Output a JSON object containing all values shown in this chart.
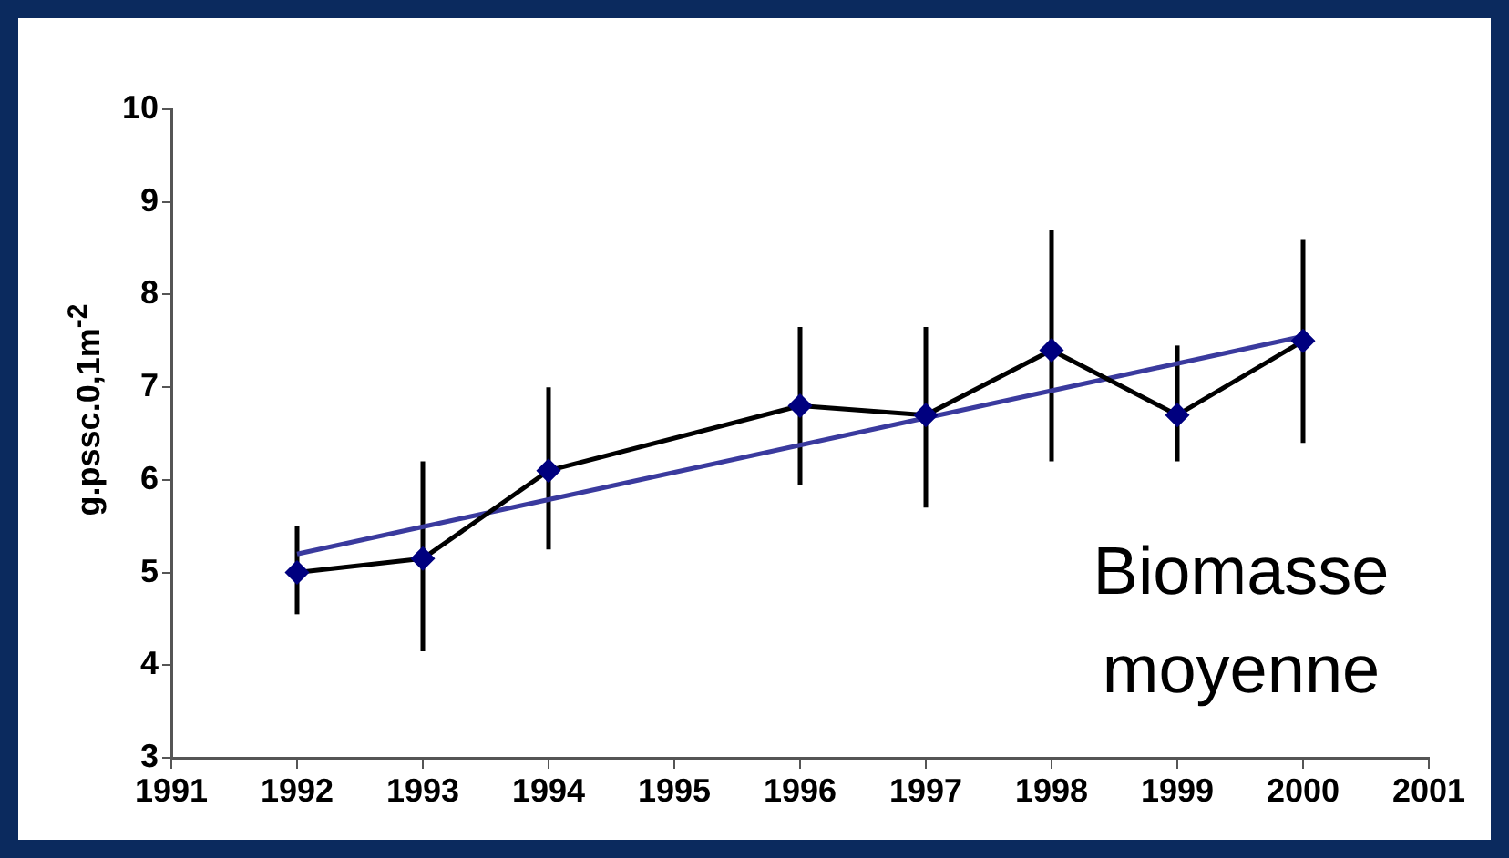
{
  "chart_data": {
    "type": "line",
    "ylabel": "g.pssc.0,1m$^{-2}$",
    "annotations": [
      "Biomasse moyenne"
    ],
    "xlim": [
      1991,
      2001
    ],
    "xticks": [
      1991,
      1992,
      1993,
      1994,
      1995,
      1996,
      1997,
      1998,
      1999,
      2000,
      2001
    ],
    "ylim": [
      3,
      10
    ],
    "yticks": [
      3,
      4,
      5,
      6,
      7,
      8,
      9,
      10
    ],
    "grid": false,
    "marker": "diamond",
    "series": [
      {
        "color": "#000000",
        "x": [
          1992,
          1993,
          1994,
          1996,
          1997,
          1998,
          1999,
          2000
        ],
        "values": [
          5.0,
          5.15,
          6.1,
          6.8,
          6.7,
          7.4,
          6.7,
          7.5
        ],
        "errors": [
          [
            4.55,
            5.5
          ],
          [
            4.15,
            6.2
          ],
          [
            5.25,
            7.0
          ],
          [
            5.95,
            7.65
          ],
          [
            5.7,
            7.65
          ],
          [
            6.2,
            8.7
          ],
          [
            6.2,
            7.45
          ],
          [
            6.4,
            8.6
          ]
        ]
      },
      {
        "type": "line",
        "color": "#3a3a9e",
        "marker": "none",
        "x": [
          1992,
          2000
        ],
        "values": [
          5.2,
          7.55
        ]
      }
    ]
  }
}
